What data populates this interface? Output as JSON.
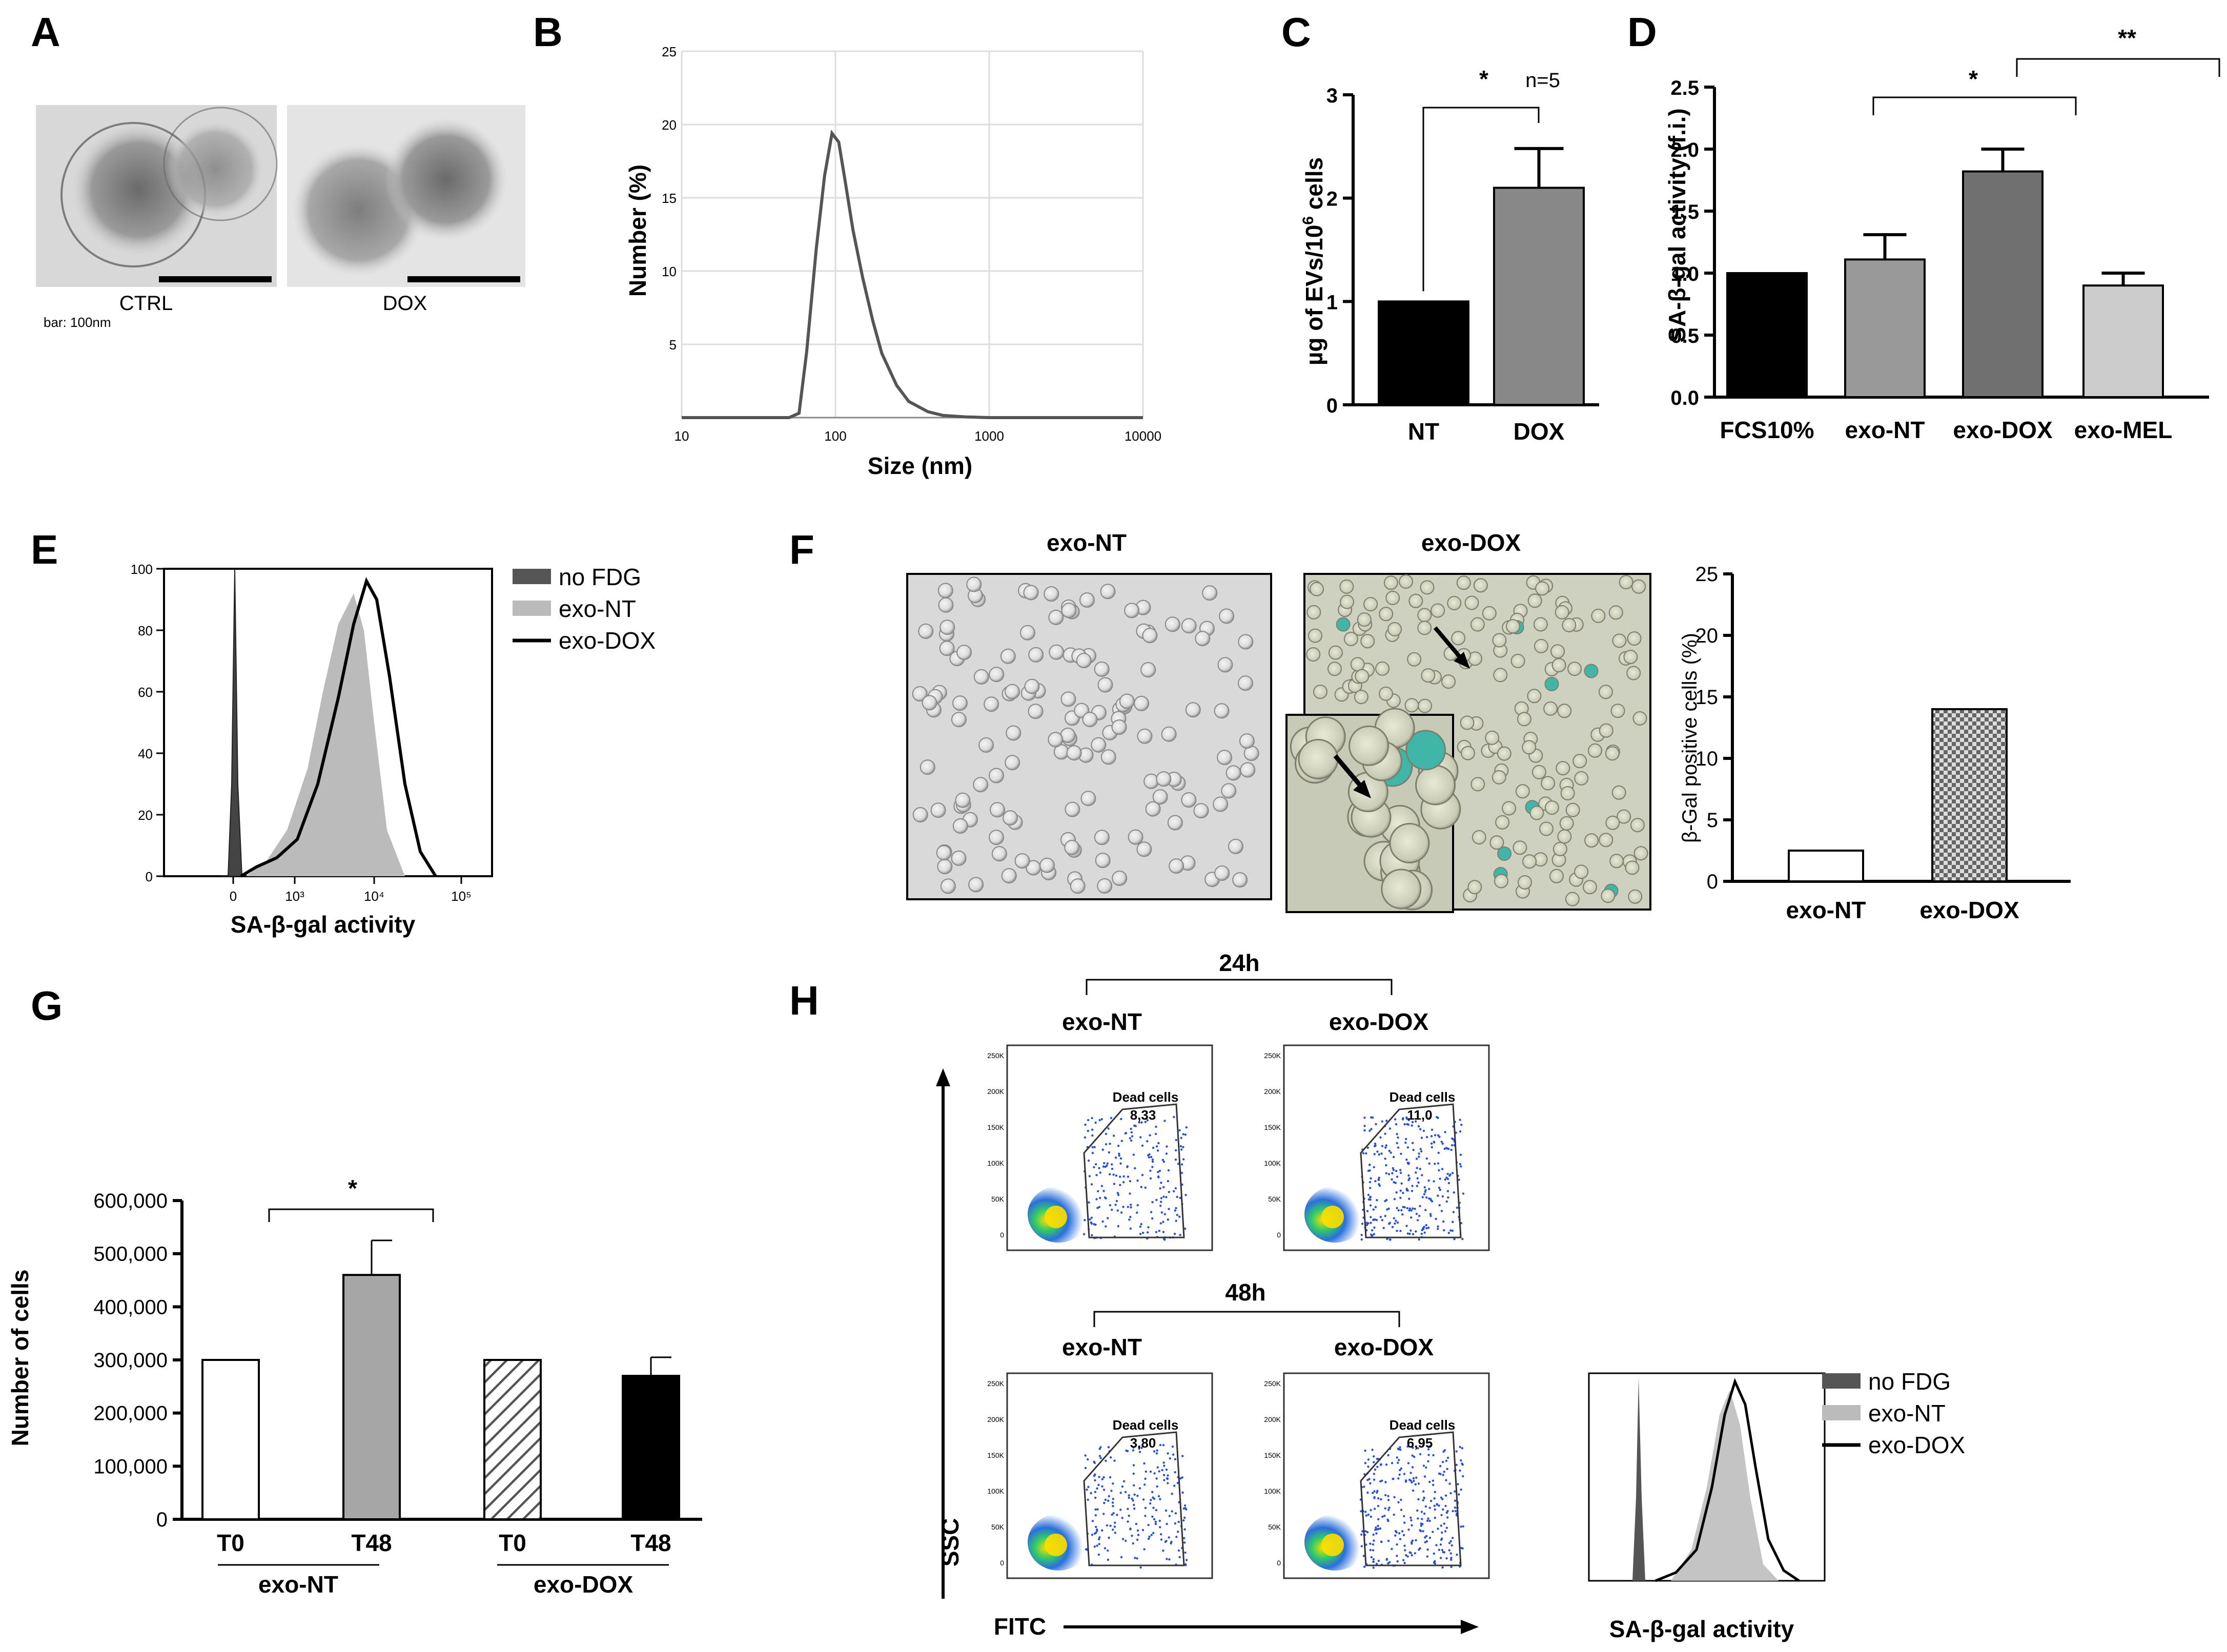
{
  "panel_labels": {
    "A": "A",
    "B": "B",
    "C": "C",
    "D": "D",
    "E": "E",
    "F": "F",
    "G": "G",
    "H": "H"
  },
  "panelA": {
    "ctrl_label": "CTRL",
    "dox_label": "DOX",
    "scale_text": "bar: 100nm"
  },
  "panelB": {
    "xlabel": "Size (nm)",
    "ylabel": "Number (%)"
  },
  "panelC": {
    "n_label": "n=5",
    "sig": "*",
    "ylabel_pre": "µg of EVs/10",
    "ylabel_sup": "6",
    "ylabel_post": " cells"
  },
  "panelD": {
    "ylabel": "SA-β-gal activity (f.i.)",
    "sig1": "*",
    "sig2": "**"
  },
  "panelE": {
    "xlabel": "SA-β-gal activity",
    "legend": [
      "no FDG",
      "exo-NT",
      "exo-DOX"
    ]
  },
  "panelF": {
    "img1_title": "exo-NT",
    "img2_title": "exo-DOX",
    "ylabel": "β-Gal positive cells (%)"
  },
  "panelG": {
    "ylabel": "Number of cells",
    "sig": "*",
    "group1": "exo-NT",
    "group2": "exo-DOX"
  },
  "panelH": {
    "time1": "24h",
    "time2": "48h",
    "col1": "exo-NT",
    "col2": "exo-DOX",
    "gate_label": "Dead cells",
    "gate_values": [
      "8,33",
      "11,0",
      "3,80",
      "6,95"
    ],
    "x_axis": "FITC",
    "y_axis": "SSC",
    "dens_yticks": [
      "250K",
      "200K",
      "150K",
      "100K",
      "50K",
      "0"
    ],
    "hist_xlabel": "SA-β-gal activity",
    "legend": [
      "no FDG",
      "exo-NT",
      "exo-DOX"
    ]
  },
  "chart_data": [
    {
      "type": "line",
      "title": "B",
      "xlabel": "Size (nm)",
      "ylabel": "Number (%)",
      "xscale": "log",
      "xlim": [
        10,
        10000
      ],
      "ylim": [
        0,
        25
      ],
      "xticks": [
        "10",
        "100",
        "1000",
        "10000"
      ],
      "yticks": [
        "5",
        "10",
        "15",
        "20",
        "25"
      ],
      "x": [
        10,
        50,
        58,
        65,
        75,
        85,
        95,
        105,
        115,
        130,
        150,
        175,
        200,
        250,
        300,
        400,
        500,
        700,
        1000,
        10000
      ],
      "y": [
        0,
        0,
        0.3,
        4.5,
        11.5,
        16.5,
        19.4,
        18.8,
        16.3,
        12.8,
        9.6,
        6.6,
        4.4,
        2.2,
        1.1,
        0.4,
        0.15,
        0.05,
        0,
        0
      ]
    },
    {
      "type": "bar",
      "title": "C",
      "categories": [
        "NT",
        "DOX"
      ],
      "values": [
        1.0,
        2.1
      ],
      "errors": [
        0,
        0.38
      ],
      "ylim": [
        0,
        3
      ],
      "yticks": [
        "0",
        "1",
        "2",
        "3"
      ],
      "colors": [
        "#000000",
        "#888888"
      ]
    },
    {
      "type": "bar",
      "title": "D",
      "categories": [
        "FCS10%",
        "exo-NT",
        "exo-DOX",
        "exo-MEL"
      ],
      "values": [
        1.0,
        1.11,
        1.82,
        0.9
      ],
      "errors": [
        0,
        0.2,
        0.18,
        0.1
      ],
      "ylim": [
        0,
        2.5
      ],
      "yticks": [
        "0.0",
        "0.5",
        "1.0",
        "1.5",
        "2.0",
        "2.5"
      ],
      "colors": [
        "#000000",
        "#999999",
        "#707070",
        "#cccccc"
      ]
    },
    {
      "type": "area",
      "title": "E",
      "xlabel": "SA-β-gal activity",
      "ylim": [
        0,
        100
      ],
      "xticks": [
        "0",
        "10³",
        "10⁴",
        "10⁵"
      ],
      "yticks": [
        "0",
        "20",
        "40",
        "60",
        "80",
        "100"
      ],
      "series_names": [
        "no FDG",
        "exo-NT",
        "exo-DOX"
      ]
    },
    {
      "type": "bar",
      "title": "F",
      "categories": [
        "exo-NT",
        "exo-DOX"
      ],
      "values": [
        2.5,
        14
      ],
      "ylim": [
        0,
        25
      ],
      "yticks": [
        "0",
        "5",
        "10",
        "15",
        "20",
        "25"
      ],
      "ylabel": "β-Gal positive cells (%)"
    },
    {
      "type": "bar",
      "title": "G",
      "categories": [
        "T0",
        "T48",
        "T0",
        "T48"
      ],
      "groups": [
        "exo-NT",
        "exo-NT",
        "exo-DOX",
        "exo-DOX"
      ],
      "values": [
        300000,
        460000,
        300000,
        270000
      ],
      "errors": [
        0,
        65000,
        0,
        35000
      ],
      "ylim": [
        0,
        600000
      ],
      "yticks": [
        "0",
        "100,000",
        "200,000",
        "300,000",
        "400,000",
        "500,000",
        "600,000"
      ],
      "ylabel": "Number of cells"
    }
  ]
}
